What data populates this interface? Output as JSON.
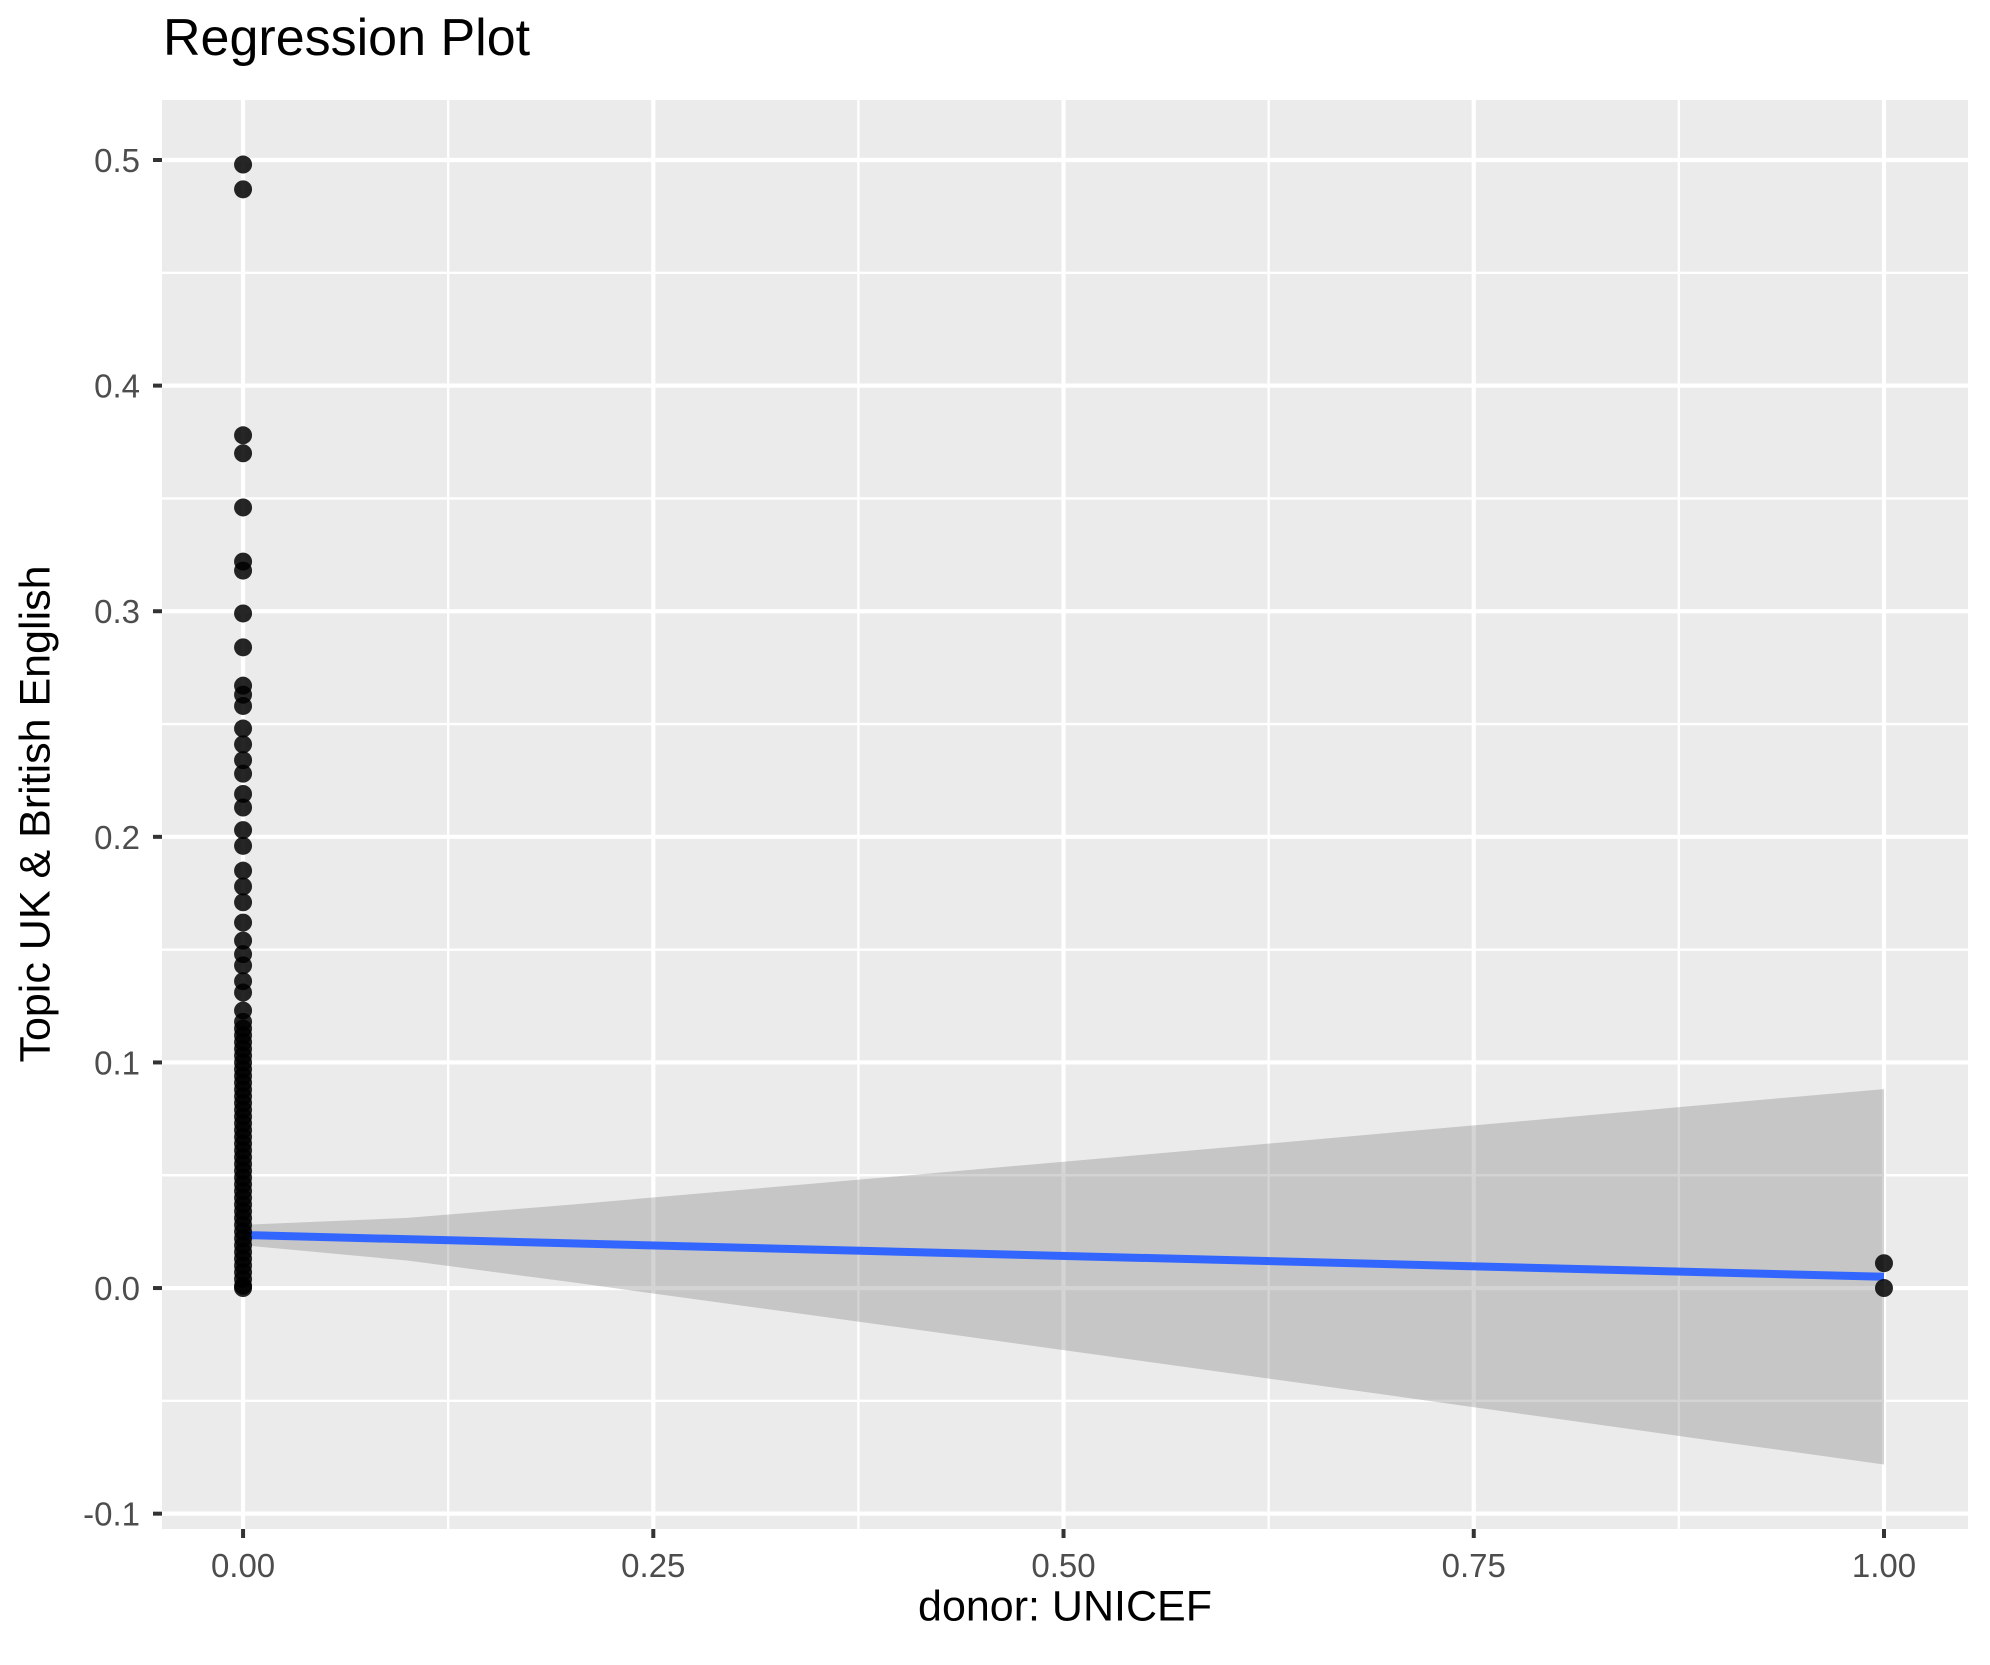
{
  "chart_data": {
    "type": "scatter",
    "title": "Regression Plot",
    "xlabel": "donor: UNICEF",
    "ylabel": "Topic UK & British English",
    "xlim": [
      -0.0494,
      1.0512
    ],
    "ylim": [
      -0.1068,
      0.5266
    ],
    "grid": "major-and-minor-white-on-gray",
    "legend_position": "none",
    "x_axis": {
      "tick_values": [
        0,
        0.25,
        0.5,
        0.75,
        1.0
      ],
      "tick_labels": [
        "0.00",
        "0.25",
        "0.50",
        "0.75",
        "1.00"
      ],
      "minor_tick_values": [
        0.125,
        0.375,
        0.625,
        0.875
      ]
    },
    "y_axis": {
      "tick_values": [
        -0.1,
        0.0,
        0.1,
        0.2,
        0.3,
        0.4,
        0.5
      ],
      "tick_labels": [
        "-0.1",
        "0.0",
        "0.1",
        "0.2",
        "0.3",
        "0.4",
        "0.5"
      ],
      "minor_tick_values": [
        -0.05,
        0.05,
        0.15,
        0.25,
        0.35,
        0.45
      ]
    },
    "series": [
      {
        "name": "observations-at-x0",
        "type": "scatter",
        "x": 0,
        "y_values": [
          0.498,
          0.487,
          0.378,
          0.37,
          0.346,
          0.322,
          0.318,
          0.299,
          0.284,
          0.267,
          0.263,
          0.258,
          0.248,
          0.241,
          0.234,
          0.228,
          0.219,
          0.213,
          0.203,
          0.196,
          0.185,
          0.178,
          0.171,
          0.162,
          0.154,
          0.148,
          0.143,
          0.136,
          0.131,
          0.123,
          0.118,
          0.115,
          0.112,
          0.109,
          0.106,
          0.103,
          0.1,
          0.097,
          0.094,
          0.091,
          0.088,
          0.085,
          0.082,
          0.079,
          0.076,
          0.073,
          0.07,
          0.067,
          0.064,
          0.061,
          0.058,
          0.055,
          0.052,
          0.049,
          0.046,
          0.043,
          0.04,
          0.037,
          0.034,
          0.031,
          0.028,
          0.025,
          0.022,
          0.019,
          0.016,
          0.013,
          0.01,
          0.007,
          0.004,
          0.001,
          0.0
        ]
      },
      {
        "name": "observations-at-x1",
        "type": "scatter",
        "x": 1,
        "y_values": [
          0.011,
          0.0
        ]
      },
      {
        "name": "regression-fit",
        "type": "line",
        "points": [
          {
            "x": 0,
            "y": 0.0235
          },
          {
            "x": 1,
            "y": 0.005
          }
        ]
      },
      {
        "name": "confidence-band",
        "type": "area",
        "x": [
          0.0,
          0.1,
          0.2,
          0.3,
          0.4,
          0.5,
          0.6,
          0.7,
          0.8,
          0.9,
          1.0
        ],
        "upper": [
          0.028,
          0.0311,
          0.037,
          0.0433,
          0.0496,
          0.056,
          0.0624,
          0.0689,
          0.0753,
          0.0818,
          0.0882
        ],
        "lower": [
          0.019,
          0.0122,
          0.0026,
          -0.0074,
          -0.0174,
          -0.0275,
          -0.0376,
          -0.0477,
          -0.0579,
          -0.0681,
          -0.0782
        ]
      }
    ],
    "colors": {
      "background": "#FFFFFF",
      "panel_background": "#EBEBEB",
      "gridline": "#FFFFFF",
      "tick_mark": "#333333",
      "tick_label": "#4D4D4D",
      "title_text": "#000000",
      "axis_title_text": "#000000",
      "point": "#000000",
      "point_opacity": 0.85,
      "regression_line": "#3366FF",
      "ribbon_fill": "#7D7D7D",
      "ribbon_opacity": 0.33
    }
  }
}
